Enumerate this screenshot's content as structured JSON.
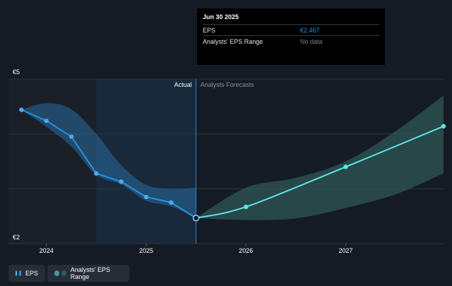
{
  "tooltip": {
    "title": "Jun 30 2025",
    "rows": [
      {
        "label": "EPS",
        "value": "€2.467"
      },
      {
        "label": "Analysts' EPS Range",
        "value": "No data"
      }
    ]
  },
  "legend": {
    "items": [
      {
        "label": "EPS",
        "colors": [
          "#4fc3f7",
          "#2394df"
        ]
      },
      {
        "label": "Analysts' EPS Range",
        "colors": [
          "#3a9e98",
          "#2f5a5a"
        ]
      }
    ]
  },
  "chart_data": {
    "type": "line",
    "y_unit_labels": [
      "€5",
      "€2"
    ],
    "ylim": [
      2,
      5
    ],
    "xlim": [
      2023.62,
      2027.98
    ],
    "x_ticks": [
      {
        "label": "2024",
        "x": 2024.0
      },
      {
        "label": "2025",
        "x": 2025.0
      },
      {
        "label": "2026",
        "x": 2026.0
      },
      {
        "label": "2027",
        "x": 2027.0
      }
    ],
    "annotations": {
      "actual": "Actual",
      "forecast": "Analysts Forecasts",
      "divider_x": 2025.5
    },
    "series": [
      {
        "name": "EPS",
        "color": "#2394df",
        "points": [
          {
            "x": 2023.75,
            "y": 4.44
          },
          {
            "x": 2024.0,
            "y": 4.24
          },
          {
            "x": 2024.25,
            "y": 3.95
          },
          {
            "x": 2024.5,
            "y": 3.28
          },
          {
            "x": 2024.75,
            "y": 3.13
          },
          {
            "x": 2025.0,
            "y": 2.85
          },
          {
            "x": 2025.25,
            "y": 2.75
          },
          {
            "x": 2025.5,
            "y": 2.467
          }
        ]
      },
      {
        "name": "Analysts' EPS Range",
        "color": "#5ee6e6",
        "points": [
          {
            "x": 2025.5,
            "y": 2.467
          },
          {
            "x": 2026.0,
            "y": 2.67
          },
          {
            "x": 2027.0,
            "y": 3.4
          },
          {
            "x": 2027.98,
            "y": 4.14
          }
        ]
      }
    ],
    "actual_band": {
      "x": [
        2023.75,
        2024.0,
        2024.25,
        2024.5,
        2024.75,
        2025.0,
        2025.25,
        2025.5
      ],
      "upper": [
        4.44,
        4.56,
        4.45,
        4.0,
        3.43,
        3.07,
        3.0,
        3.02
      ],
      "lower": [
        4.44,
        4.13,
        3.77,
        3.25,
        3.08,
        2.78,
        2.68,
        2.467
      ]
    },
    "forecast_band": {
      "x": [
        2025.5,
        2026.0,
        2026.5,
        2027.0,
        2027.5,
        2027.98
      ],
      "upper": [
        2.467,
        3.02,
        3.2,
        3.5,
        4.05,
        4.7
      ],
      "lower": [
        2.467,
        2.43,
        2.46,
        2.65,
        2.9,
        3.28
      ]
    },
    "highlight_point": {
      "x": 2025.5,
      "y": 2.467
    },
    "grid": true
  }
}
